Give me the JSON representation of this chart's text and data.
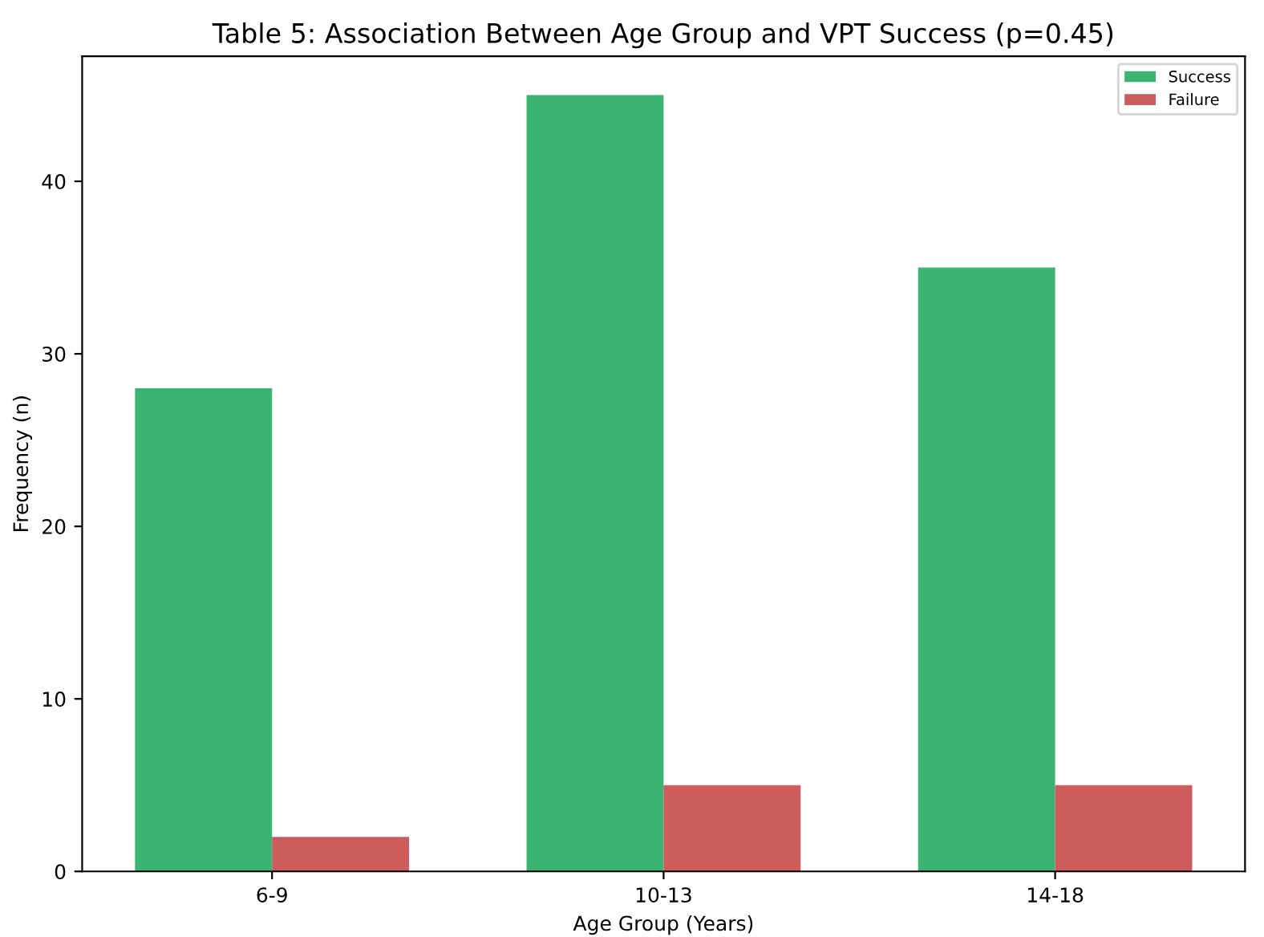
{
  "chart_data": {
    "type": "bar",
    "title": "Table 5: Association Between Age Group and VPT Success (p=0.45)",
    "xlabel": "Age Group (Years)",
    "ylabel": "Frequency (n)",
    "categories": [
      "6-9",
      "10-13",
      "14-18"
    ],
    "series": [
      {
        "name": "Success",
        "color": "#3cb371",
        "values": [
          28,
          45,
          35
        ]
      },
      {
        "name": "Failure",
        "color": "#cd5c5c",
        "values": [
          2,
          5,
          5
        ]
      }
    ],
    "ylim": [
      0,
      47.25
    ],
    "yticks": [
      0,
      10,
      20,
      30,
      40
    ],
    "grid": false,
    "legend": "top right"
  }
}
